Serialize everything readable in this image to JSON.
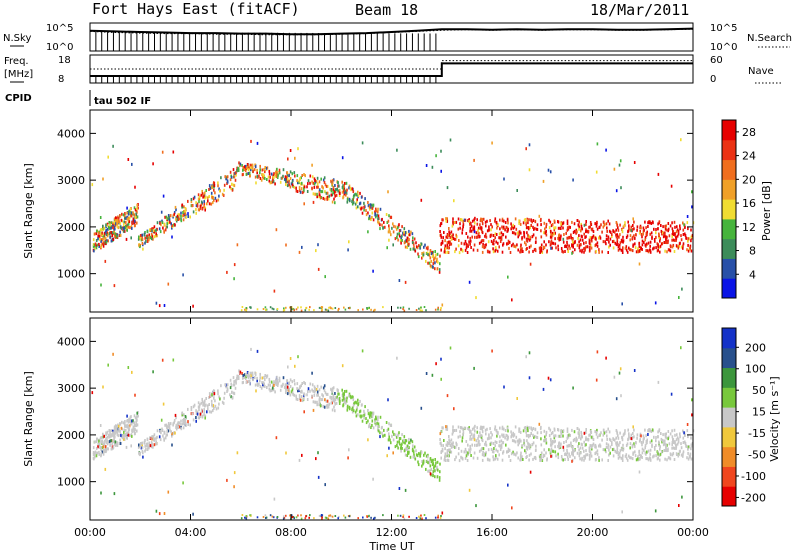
{
  "header": {
    "station": "Fort Hays East (fitACF)",
    "beam": "Beam 18",
    "date": "18/Mar/2011"
  },
  "labels": {
    "nsky": "N.Sky",
    "nsearch": "N.Search",
    "freq": "Freq.",
    "freq_unit": "[MHz]",
    "nave": "Nave",
    "cpid": "CPID",
    "cpid_value": "tau 502 IF"
  },
  "strip_ticks": {
    "noise_left": [
      "10^5",
      "10^0"
    ],
    "noise_right": [
      "10^5",
      "10^0"
    ],
    "freq_left": [
      "18",
      "8"
    ],
    "nave_right": [
      "60",
      "0"
    ]
  },
  "colors": {
    "power_scale": [
      "#0a14e6",
      "#2850a8",
      "#3c8c5a",
      "#46b43c",
      "#f0dc32",
      "#f0a028",
      "#f06e1e",
      "#eb3214",
      "#e60000"
    ],
    "velocity_scale": [
      "#e60000",
      "#f0461e",
      "#f08c28",
      "#f0c83c",
      "#c8c8c8",
      "#78c83c",
      "#3c963c",
      "#28508c",
      "#1432c8"
    ]
  },
  "chart_data": [
    {
      "type": "heatmap",
      "panel": "power",
      "xlabel": "",
      "ylabel": "Slant Range [km]",
      "xlim": [
        0,
        24
      ],
      "ylim": [
        180,
        4500
      ],
      "yticks": [
        "1000",
        "2000",
        "3000",
        "4000"
      ],
      "colorbar_label": "Power [dB]",
      "colorbar_ticks": [
        "4",
        "8",
        "12",
        "16",
        "20",
        "24",
        "28"
      ],
      "colorbar_range": [
        0,
        30
      ],
      "echo_bands": [
        {
          "t": [
            0.1,
            1.9
          ],
          "r0": [
            1450,
            2050
          ],
          "r1": [
            1900,
            2500
          ]
        },
        {
          "t": [
            1.9,
            5.8
          ],
          "r0": [
            1550,
            2800
          ],
          "r1": [
            1800,
            3300
          ]
        },
        {
          "t": [
            5.8,
            9.8
          ],
          "r0": [
            3150,
            2500
          ],
          "r1": [
            3400,
            3000
          ]
        },
        {
          "t": [
            9.8,
            13.9
          ],
          "r0": [
            2700,
            1000
          ],
          "r1": [
            3100,
            1400
          ]
        },
        {
          "t": [
            13.9,
            24.0
          ],
          "r0": [
            1450,
            1450
          ],
          "r1": [
            2200,
            2100
          ]
        }
      ]
    },
    {
      "type": "heatmap",
      "panel": "velocity",
      "xlabel": "Time UT",
      "ylabel": "Slant Range [km]",
      "xlim": [
        0,
        24
      ],
      "ylim": [
        180,
        4500
      ],
      "xticks": [
        "00:00",
        "04:00",
        "08:00",
        "12:00",
        "16:00",
        "20:00",
        "00:00"
      ],
      "yticks": [
        "1000",
        "2000",
        "3000",
        "4000"
      ],
      "colorbar_label": "Velocity [m s⁻¹]",
      "colorbar_ticks": [
        "200",
        "100",
        "50",
        "15",
        "-15",
        "-50",
        "-100",
        "-200"
      ],
      "colorbar_range": [
        -250,
        250
      ]
    },
    {
      "type": "line",
      "panel": "noise",
      "series": [
        {
          "name": "N.Sky",
          "values": [
            3.6,
            3.5,
            3.4,
            3.3,
            3.2,
            3.2,
            3.1,
            3.1,
            3.0,
            3.0,
            3.1,
            3.2,
            3.4,
            3.6,
            3.9,
            3.9,
            3.8,
            3.9,
            3.8,
            3.9,
            3.9,
            3.8,
            3.8,
            3.9,
            4.0
          ]
        },
        {
          "name": "N.Search",
          "values": [
            3.5,
            3.3,
            3.2,
            3.1,
            3.1,
            3.0,
            3.0,
            2.9,
            2.9,
            2.9,
            3.0,
            3.1,
            3.3,
            3.5,
            3.7,
            3.8,
            3.7,
            3.8,
            3.7,
            3.8,
            3.8,
            3.7,
            3.7,
            3.8,
            3.9
          ]
        }
      ],
      "x": [
        0,
        1,
        2,
        3,
        4,
        5,
        6,
        7,
        8,
        9,
        10,
        11,
        12,
        13,
        14,
        15,
        16,
        17,
        18,
        19,
        20,
        21,
        22,
        23,
        24
      ]
    },
    {
      "type": "line",
      "panel": "freq_nave",
      "series": [
        {
          "name": "Freq.",
          "values": [
            10.5,
            10.5,
            10.5,
            10.5,
            10.5,
            10.5,
            10.5,
            10.5,
            10.5,
            10.5,
            10.5,
            10.5,
            10.5,
            10.5,
            15.0,
            15.0,
            15.0,
            15.0,
            15.0,
            15.0,
            15.0,
            15.0,
            15.0,
            15.0,
            15.0
          ]
        },
        {
          "name": "Nave",
          "values": [
            30,
            30,
            30,
            30,
            30,
            30,
            30,
            30,
            30,
            30,
            30,
            30,
            30,
            30,
            48,
            48,
            48,
            48,
            48,
            48,
            48,
            48,
            48,
            48,
            48
          ]
        }
      ],
      "x": [
        0,
        1,
        2,
        3,
        4,
        5,
        6,
        7,
        8,
        9,
        10,
        11,
        12,
        13,
        14,
        15,
        16,
        17,
        18,
        19,
        20,
        21,
        22,
        23,
        24
      ]
    }
  ]
}
